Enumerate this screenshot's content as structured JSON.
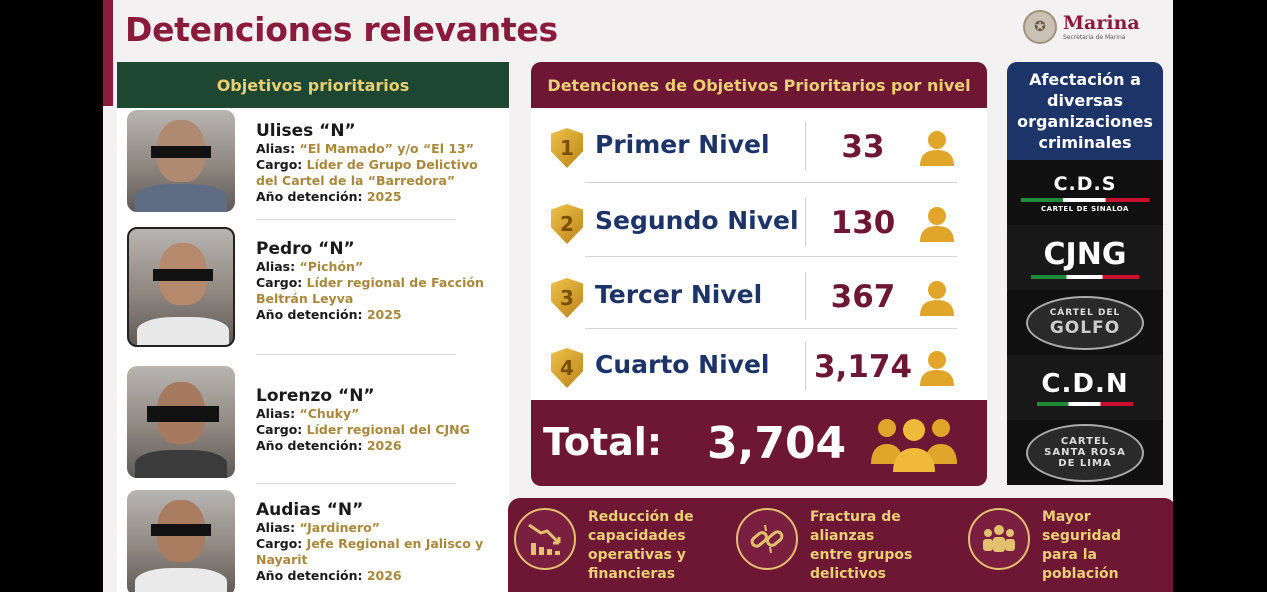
{
  "title": "Detenciones relevantes",
  "logo": {
    "name": "Marina",
    "subtitle": "Secretaría de Marina"
  },
  "objectives": {
    "header": "Objetivos prioritarios",
    "people": [
      {
        "name": "Ulises “N”",
        "alias_label": "Alias:",
        "alias": "“El Mamado” y/o “El 13”",
        "cargo_label": "Cargo:",
        "cargo": "Líder de Grupo Delictivo del Cartel de la “Barredora”",
        "year_label": "Año detención:",
        "year": "2025"
      },
      {
        "name": "Pedro “N”",
        "alias_label": "Alias:",
        "alias": "“Pichón”",
        "cargo_label": "Cargo:",
        "cargo": "Líder regional de Facción Beltrán Leyva",
        "year_label": "Año detención:",
        "year": "2025"
      },
      {
        "name": "Lorenzo “N”",
        "alias_label": "Alias:",
        "alias": "“Chuky”",
        "cargo_label": "Cargo:",
        "cargo": "Líder regional del CJNG",
        "year_label": "Año detención:",
        "year": "2026"
      },
      {
        "name": "Audias “N”",
        "alias_label": "Alias:",
        "alias": "“Jardinero”",
        "cargo_label": "Cargo:",
        "cargo": "Jefe Regional en Jalisco y Nayarit",
        "year_label": "Año detención:",
        "year": "2026"
      }
    ]
  },
  "levels": {
    "header": "Detenciones de Objetivos Prioritarios por nivel",
    "rows": [
      {
        "num": "1",
        "label": "Primer Nivel",
        "count": "33"
      },
      {
        "num": "2",
        "label": "Segundo Nivel",
        "count": "130"
      },
      {
        "num": "3",
        "label": "Tercer Nivel",
        "count": "367"
      },
      {
        "num": "4",
        "label": "Cuarto Nivel",
        "count": "3,174"
      }
    ],
    "total_label": "Total:",
    "total_value": "3,704"
  },
  "orgs": {
    "header": "Afectación a diversas organizaciones criminales",
    "cds": {
      "name": "C.D.S",
      "sub": "CARTEL DE SINALOA"
    },
    "cjng": {
      "name": "CJNG"
    },
    "golfo": {
      "top": "CÁRTEL DEL",
      "big": "GOLFO"
    },
    "cdn": {
      "name": "C.D.N"
    },
    "santa_rosa": {
      "top": "CARTEL",
      "mid": "SANTA ROSA",
      "bottom": "DE LIMA"
    }
  },
  "benefits": [
    {
      "text": "Reducción de\ncapacidades\noperativas y\nfinancieras",
      "icon": "decline-chart-icon"
    },
    {
      "text": "Fractura de\nalianzas\nentre grupos\ndelictivos",
      "icon": "broken-link-icon"
    },
    {
      "text": "Mayor\nseguridad\npara la\npoblación",
      "icon": "people-group-icon"
    }
  ],
  "colors": {
    "maroon": "#6e1735",
    "gold": "#e9cf74",
    "navy": "#1c3468",
    "green": "#1e4732"
  }
}
